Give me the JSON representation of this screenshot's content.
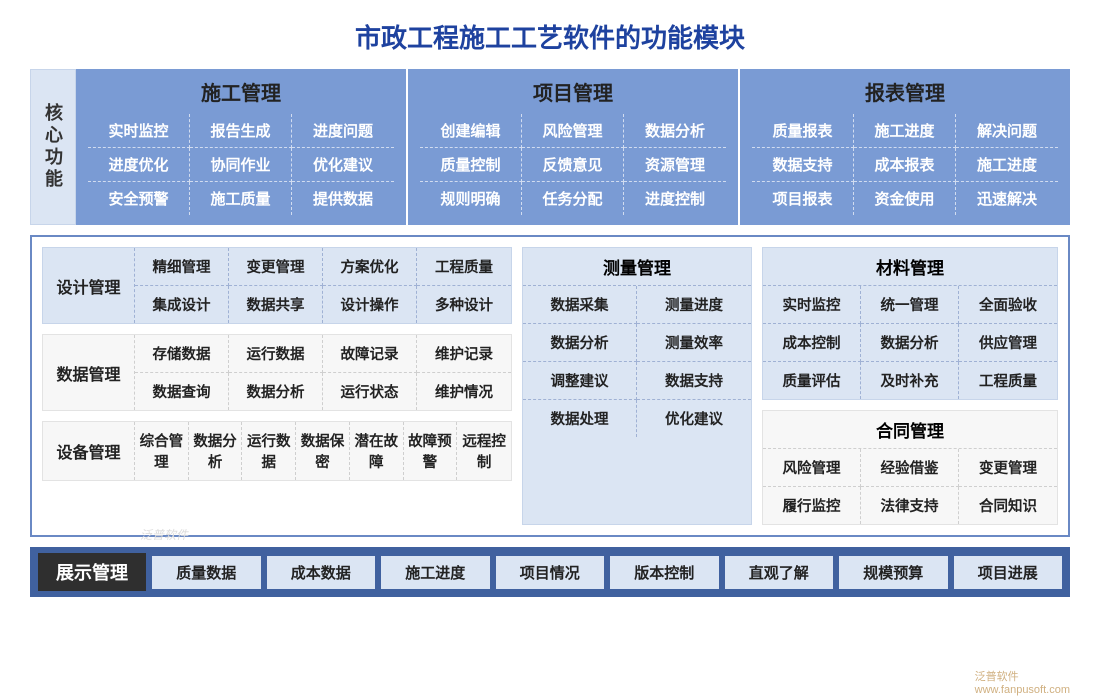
{
  "title": "市政工程施工工艺软件的功能模块",
  "colors": {
    "title_color": "#1e429f",
    "band_bg": "#7a9bd4",
    "panel_bg": "#dbe5f3",
    "panel_border": "#c7d5ea",
    "frame_border": "#6a89c4",
    "bottom_band_bg": "#40619f",
    "bottom_label_bg": "#2f2f2f",
    "core_cell_text": "#ffffff"
  },
  "core": {
    "side_label": "核心功能",
    "columns": [
      {
        "title": "施工管理",
        "items": [
          "实时监控",
          "报告生成",
          "进度问题",
          "进度优化",
          "协同作业",
          "优化建议",
          "安全预警",
          "施工质量",
          "提供数据"
        ]
      },
      {
        "title": "项目管理",
        "items": [
          "创建编辑",
          "风险管理",
          "数据分析",
          "质量控制",
          "反馈意见",
          "资源管理",
          "规则明确",
          "任务分配",
          "进度控制"
        ]
      },
      {
        "title": "报表管理",
        "items": [
          "质量报表",
          "施工进度",
          "解决问题",
          "数据支持",
          "成本报表",
          "施工进度",
          "项目报表",
          "资金使用",
          "迅速解决"
        ]
      }
    ]
  },
  "left": {
    "design": {
      "label": "设计管理",
      "items": [
        "精细管理",
        "变更管理",
        "方案优化",
        "工程质量",
        "集成设计",
        "数据共享",
        "设计操作",
        "多种设计"
      ]
    },
    "data": {
      "label": "数据管理",
      "items": [
        "存储数据",
        "运行数据",
        "故障记录",
        "维护记录",
        "数据查询",
        "数据分析",
        "运行状态",
        "维护情况"
      ]
    }
  },
  "mid": {
    "title": "测量管理",
    "items": [
      "数据采集",
      "测量进度",
      "数据分析",
      "测量效率",
      "调整建议",
      "数据支持",
      "数据处理",
      "优化建议"
    ]
  },
  "right": {
    "material": {
      "title": "材料管理",
      "items": [
        "实时监控",
        "统一管理",
        "全面验收",
        "成本控制",
        "数据分析",
        "供应管理",
        "质量评估",
        "及时补充",
        "工程质量"
      ]
    },
    "contract": {
      "title": "合同管理",
      "items": [
        "风险管理",
        "经验借鉴",
        "变更管理",
        "履行监控",
        "法律支持",
        "合同知识"
      ]
    }
  },
  "equipment": {
    "label": "设备管理",
    "items": [
      "综合管理",
      "数据分析",
      "运行数据",
      "数据保密",
      "潜在故障",
      "故障预警",
      "远程控制"
    ]
  },
  "bottom": {
    "label": "展示管理",
    "items": [
      "质量数据",
      "成本数据",
      "施工进度",
      "项目情况",
      "版本控制",
      "直观了解",
      "规模预算",
      "项目进展"
    ]
  },
  "watermark": {
    "brand": "泛普软件",
    "url": "www.fanpusoft.com"
  }
}
